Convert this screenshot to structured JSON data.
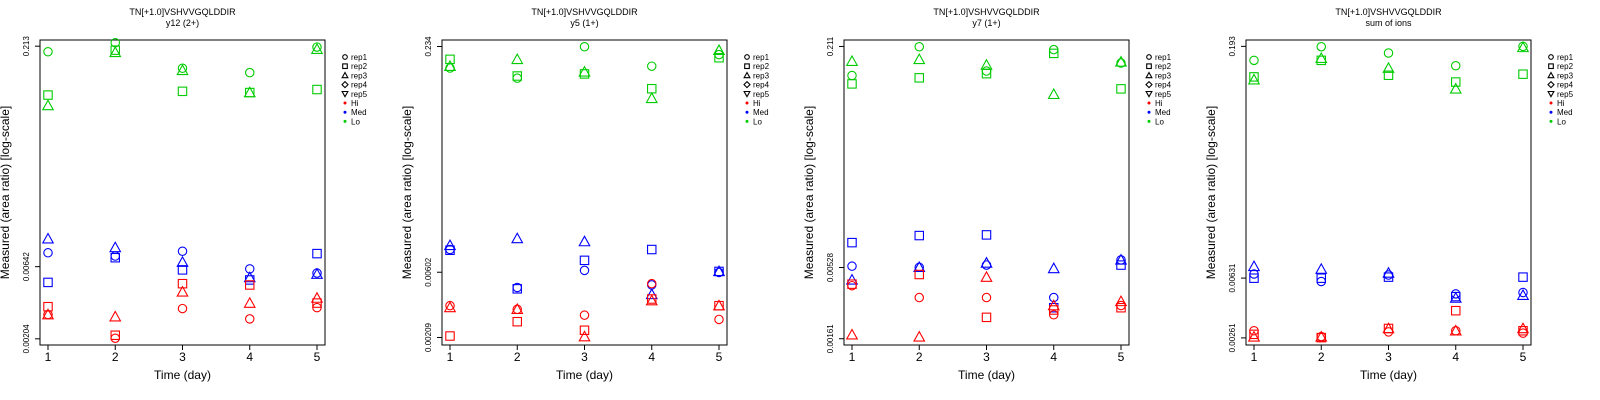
{
  "colors": {
    "Hi": "#ff0000",
    "Med": "#0000ff",
    "Lo": "#00cc00"
  },
  "legend": {
    "reps": [
      {
        "label": "rep1",
        "shape": "circle"
      },
      {
        "label": "rep2",
        "shape": "square"
      },
      {
        "label": "rep3",
        "shape": "triangle-up"
      },
      {
        "label": "rep4",
        "shape": "diamond"
      },
      {
        "label": "rep5",
        "shape": "triangle-down"
      }
    ],
    "groups": [
      {
        "label": "Hi",
        "color": "#ff0000"
      },
      {
        "label": "Med",
        "color": "#0000ff"
      },
      {
        "label": "Lo",
        "color": "#00cc00"
      }
    ]
  },
  "chart_data": [
    {
      "type": "scatter",
      "title": "TN[+1.0]VSHVVGQLDDIR",
      "subtitle": "y12 (2+)",
      "xlabel": "Time (day)",
      "ylabel": "Measured (area ratio) [log-scale]",
      "yscale": "log",
      "x_ticks": [
        "1",
        "2",
        "3",
        "4",
        "5"
      ],
      "y_ticks": [
        {
          "value": 0.00204,
          "label": "0.00204"
        },
        {
          "value": 0.00642,
          "label": "0.00642"
        },
        {
          "value": 0.213,
          "label": "0.213"
        }
      ],
      "ylim": [
        0.00185,
        0.235
      ],
      "series": [
        {
          "group": "Lo",
          "rep": "rep1",
          "points": [
            [
              1,
              0.195
            ],
            [
              2,
              0.225
            ],
            [
              3,
              0.15
            ],
            [
              4,
              0.14
            ],
            [
              5,
              0.21
            ]
          ]
        },
        {
          "group": "Lo",
          "rep": "rep2",
          "points": [
            [
              1,
              0.098
            ],
            [
              2,
              0.2
            ],
            [
              3,
              0.104
            ],
            [
              4,
              0.102
            ],
            [
              5,
              0.107
            ]
          ]
        },
        {
          "group": "Lo",
          "rep": "rep3",
          "points": [
            [
              1,
              0.083
            ],
            [
              2,
              0.193
            ],
            [
              3,
              0.145
            ],
            [
              4,
              0.102
            ],
            [
              5,
              0.203
            ]
          ]
        },
        {
          "group": "Med",
          "rep": "rep1",
          "points": [
            [
              1,
              0.008
            ],
            [
              2,
              0.0076
            ],
            [
              3,
              0.0082
            ],
            [
              4,
              0.0062
            ],
            [
              5,
              0.0058
            ]
          ]
        },
        {
          "group": "Med",
          "rep": "rep2",
          "points": [
            [
              1,
              0.005
            ],
            [
              2,
              0.0074
            ],
            [
              3,
              0.0061
            ],
            [
              4,
              0.0052
            ],
            [
              5,
              0.0079
            ]
          ]
        },
        {
          "group": "Med",
          "rep": "rep3",
          "points": [
            [
              1,
              0.01
            ],
            [
              2,
              0.0087
            ],
            [
              3,
              0.0069
            ],
            [
              4,
              0.0054
            ],
            [
              5,
              0.0057
            ]
          ]
        },
        {
          "group": "Hi",
          "rep": "rep1",
          "points": [
            [
              1,
              0.003
            ],
            [
              2,
              0.00206
            ],
            [
              3,
              0.0033
            ],
            [
              4,
              0.0028
            ],
            [
              5,
              0.00335
            ]
          ]
        },
        {
          "group": "Hi",
          "rep": "rep2",
          "points": [
            [
              1,
              0.0034
            ],
            [
              2,
              0.00216
            ],
            [
              3,
              0.0049
            ],
            [
              4,
              0.0048
            ],
            [
              5,
              0.0036
            ]
          ]
        },
        {
          "group": "Hi",
          "rep": "rep3",
          "points": [
            [
              1,
              0.003
            ],
            [
              2,
              0.0029
            ],
            [
              3,
              0.0043
            ],
            [
              4,
              0.0036
            ],
            [
              5,
              0.0039
            ]
          ]
        }
      ]
    },
    {
      "type": "scatter",
      "title": "TN[+1.0]VSHVVGQLDDIR",
      "subtitle": "y5 (1+)",
      "xlabel": "Time (day)",
      "ylabel": "Measured (area ratio) [log-scale]",
      "yscale": "log",
      "x_ticks": [
        "1",
        "2",
        "3",
        "4",
        "5"
      ],
      "y_ticks": [
        {
          "value": 0.00209,
          "label": "0.00209"
        },
        {
          "value": 0.00602,
          "label": "0.00602"
        },
        {
          "value": 0.234,
          "label": "0.234"
        }
      ],
      "ylim": [
        0.00185,
        0.26
      ],
      "series": [
        {
          "group": "Lo",
          "rep": "rep1",
          "points": [
            [
              1,
              0.165
            ],
            [
              2,
              0.14
            ],
            [
              3,
              0.233
            ],
            [
              4,
              0.17
            ],
            [
              5,
              0.205
            ]
          ]
        },
        {
          "group": "Lo",
          "rep": "rep2",
          "points": [
            [
              1,
              0.19
            ],
            [
              2,
              0.145
            ],
            [
              3,
              0.15
            ],
            [
              4,
              0.118
            ],
            [
              5,
              0.195
            ]
          ]
        },
        {
          "group": "Lo",
          "rep": "rep3",
          "points": [
            [
              1,
              0.17
            ],
            [
              2,
              0.19
            ],
            [
              3,
              0.155
            ],
            [
              4,
              0.101
            ],
            [
              5,
              0.22
            ]
          ]
        },
        {
          "group": "Med",
          "rep": "rep1",
          "points": [
            [
              1,
              0.0087
            ],
            [
              2,
              0.0047
            ],
            [
              3,
              0.0062
            ],
            [
              4,
              0.0049
            ],
            [
              5,
              0.006
            ]
          ]
        },
        {
          "group": "Med",
          "rep": "rep2",
          "points": [
            [
              1,
              0.0086
            ],
            [
              2,
              0.0046
            ],
            [
              3,
              0.0073
            ],
            [
              4,
              0.0087
            ],
            [
              5,
              0.0061
            ]
          ]
        },
        {
          "group": "Med",
          "rep": "rep3",
          "points": [
            [
              1,
              0.0093
            ],
            [
              2,
              0.0104
            ],
            [
              3,
              0.0099
            ],
            [
              4,
              0.0042
            ],
            [
              5,
              0.0061
            ]
          ]
        },
        {
          "group": "Hi",
          "rep": "rep1",
          "points": [
            [
              1,
              0.0035
            ],
            [
              2,
              0.0033
            ],
            [
              3,
              0.003
            ],
            [
              4,
              0.005
            ],
            [
              5,
              0.0028
            ]
          ]
        },
        {
          "group": "Hi",
          "rep": "rep2",
          "points": [
            [
              1,
              0.00214
            ],
            [
              2,
              0.0027
            ],
            [
              3,
              0.00235
            ],
            [
              4,
              0.0039
            ],
            [
              5,
              0.0035
            ]
          ]
        },
        {
          "group": "Hi",
          "rep": "rep3",
          "points": [
            [
              1,
              0.0034
            ],
            [
              2,
              0.0033
            ],
            [
              3,
              0.00212
            ],
            [
              4,
              0.0038
            ],
            [
              5,
              0.0035
            ]
          ]
        }
      ]
    },
    {
      "type": "scatter",
      "title": "TN[+1.0]VSHVVGQLDDIR",
      "subtitle": "y7 (1+)",
      "xlabel": "Time (day)",
      "ylabel": "Measured (area ratio) [log-scale]",
      "yscale": "log",
      "x_ticks": [
        "1",
        "2",
        "3",
        "4",
        "5"
      ],
      "y_ticks": [
        {
          "value": 0.00161,
          "label": "0.00161"
        },
        {
          "value": 0.00528,
          "label": "0.00528"
        },
        {
          "value": 0.211,
          "label": "0.211"
        }
      ],
      "ylim": [
        0.00145,
        0.235
      ],
      "series": [
        {
          "group": "Lo",
          "rep": "rep1",
          "points": [
            [
              1,
              0.13
            ],
            [
              2,
              0.21
            ],
            [
              3,
              0.14
            ],
            [
              4,
              0.2
            ],
            [
              5,
              0.16
            ]
          ]
        },
        {
          "group": "Lo",
          "rep": "rep2",
          "points": [
            [
              1,
              0.113
            ],
            [
              2,
              0.125
            ],
            [
              3,
              0.134
            ],
            [
              4,
              0.188
            ],
            [
              5,
              0.104
            ]
          ]
        },
        {
          "group": "Lo",
          "rep": "rep3",
          "points": [
            [
              1,
              0.165
            ],
            [
              2,
              0.17
            ],
            [
              3,
              0.155
            ],
            [
              4,
              0.095
            ],
            [
              5,
              0.163
            ]
          ]
        },
        {
          "group": "Med",
          "rep": "rep1",
          "points": [
            [
              1,
              0.0054
            ],
            [
              2,
              0.0053
            ],
            [
              3,
              0.0055
            ],
            [
              4,
              0.0032
            ],
            [
              5,
              0.006
            ]
          ]
        },
        {
          "group": "Med",
          "rep": "rep2",
          "points": [
            [
              1,
              0.008
            ],
            [
              2,
              0.009
            ],
            [
              3,
              0.0091
            ],
            [
              4,
              0.0027
            ],
            [
              5,
              0.0055
            ]
          ]
        },
        {
          "group": "Med",
          "rep": "rep3",
          "points": [
            [
              1,
              0.0043
            ],
            [
              2,
              0.0053
            ],
            [
              3,
              0.0057
            ],
            [
              4,
              0.0052
            ],
            [
              5,
              0.006
            ]
          ]
        },
        {
          "group": "Hi",
          "rep": "rep1",
          "points": [
            [
              1,
              0.0039
            ],
            [
              2,
              0.0032
            ],
            [
              3,
              0.0032
            ],
            [
              4,
              0.0024
            ],
            [
              5,
              0.0028
            ]
          ]
        },
        {
          "group": "Hi",
          "rep": "rep2",
          "points": [
            [
              1,
              0.004
            ],
            [
              2,
              0.0047
            ],
            [
              3,
              0.0023
            ],
            [
              4,
              0.0026
            ],
            [
              5,
              0.0027
            ]
          ]
        },
        {
          "group": "Hi",
          "rep": "rep3",
          "points": [
            [
              1,
              0.00172
            ],
            [
              2,
              0.00166
            ],
            [
              3,
              0.0045
            ],
            [
              4,
              0.0028
            ],
            [
              5,
              0.003
            ]
          ]
        }
      ]
    },
    {
      "type": "scatter",
      "title": "TN[+1.0]VSHVVGQLDDIR",
      "subtitle": "sum of ions",
      "xlabel": "Time (day)",
      "ylabel": "Measured (area ratio) [log-scale]",
      "yscale": "log",
      "x_ticks": [
        "1",
        "2",
        "3",
        "4",
        "5"
      ],
      "y_ticks": [
        {
          "value": 0.00261,
          "label": "0.00261"
        },
        {
          "value": 0.00631,
          "label": "0.00631"
        },
        {
          "value": 0.193,
          "label": "0.193"
        }
      ],
      "ylim": [
        0.00235,
        0.212
      ],
      "series": [
        {
          "group": "Lo",
          "rep": "rep1",
          "points": [
            [
              1,
              0.157
            ],
            [
              2,
              0.192
            ],
            [
              3,
              0.175
            ],
            [
              4,
              0.145
            ],
            [
              5,
              0.193
            ]
          ]
        },
        {
          "group": "Lo",
          "rep": "rep2",
          "points": [
            [
              1,
              0.123
            ],
            [
              2,
              0.157
            ],
            [
              3,
              0.126
            ],
            [
              4,
              0.114
            ],
            [
              5,
              0.128
            ]
          ]
        },
        {
          "group": "Lo",
          "rep": "rep3",
          "points": [
            [
              1,
              0.118
            ],
            [
              2,
              0.162
            ],
            [
              3,
              0.14
            ],
            [
              4,
              0.103
            ],
            [
              5,
              0.19
            ]
          ]
        },
        {
          "group": "Med",
          "rep": "rep1",
          "points": [
            [
              1,
              0.0067
            ],
            [
              2,
              0.006
            ],
            [
              3,
              0.0066
            ],
            [
              4,
              0.005
            ],
            [
              5,
              0.0051
            ]
          ]
        },
        {
          "group": "Med",
          "rep": "rep2",
          "points": [
            [
              1,
              0.0063
            ],
            [
              2,
              0.0063
            ],
            [
              3,
              0.0064
            ],
            [
              4,
              0.0048
            ],
            [
              5,
              0.0064
            ]
          ]
        },
        {
          "group": "Med",
          "rep": "rep3",
          "points": [
            [
              1,
              0.0075
            ],
            [
              2,
              0.0072
            ],
            [
              3,
              0.0068
            ],
            [
              4,
              0.0047
            ],
            [
              5,
              0.0049
            ]
          ]
        },
        {
          "group": "Hi",
          "rep": "rep1",
          "points": [
            [
              1,
              0.0029
            ],
            [
              2,
              0.00266
            ],
            [
              3,
              0.00285
            ],
            [
              4,
              0.0029
            ],
            [
              5,
              0.0028
            ]
          ]
        },
        {
          "group": "Hi",
          "rep": "rep2",
          "points": [
            [
              1,
              0.00275
            ],
            [
              2,
              0.00262
            ],
            [
              3,
              0.003
            ],
            [
              4,
              0.0039
            ],
            [
              5,
              0.0029
            ]
          ]
        },
        {
          "group": "Hi",
          "rep": "rep3",
          "points": [
            [
              1,
              0.00265
            ],
            [
              2,
              0.00265
            ],
            [
              3,
              0.003
            ],
            [
              4,
              0.0029
            ],
            [
              5,
              0.003
            ]
          ]
        }
      ]
    }
  ]
}
